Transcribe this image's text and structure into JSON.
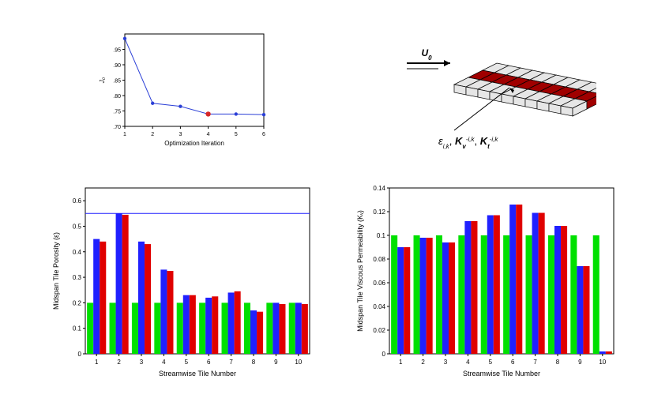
{
  "convergence_chart": {
    "type": "line",
    "x": [
      1,
      2,
      3,
      4,
      5,
      6
    ],
    "y": [
      0.985,
      0.775,
      0.765,
      0.74,
      0.74,
      0.738
    ],
    "highlight_index": 3,
    "line_color": "#2b3fd6",
    "marker_color": "#2b3fd6",
    "highlight_color": "#d62728",
    "xlabel": "Optimization Iteration",
    "ylabel": "J₀",
    "xlim": [
      1,
      6
    ],
    "ylim": [
      0.7,
      1.0
    ],
    "yticks": [
      0.7,
      0.75,
      0.8,
      0.85,
      0.9,
      0.95
    ],
    "xticks": [
      1,
      2,
      3,
      4,
      5,
      6
    ],
    "label_fontsize": 8,
    "tick_fontsize": 7,
    "background_color": "#ffffff",
    "border_color": "#000000"
  },
  "schematic": {
    "u_label": "U₀",
    "params_label_html": "ε_{i,k},  K_v^{-i,k},  K_t^{-i,k}",
    "tile_fill": "#e6e6e6",
    "tile_stroke": "#000000",
    "mid_fill": "#a00000",
    "arrow_color": "#000000"
  },
  "porosity_chart": {
    "type": "grouped-bar",
    "xlabel": "Streamwise Tile Number",
    "ylabel": "Midspan Tile Porosity (ε)",
    "categories": [
      1,
      2,
      3,
      4,
      5,
      6,
      7,
      8,
      9,
      10
    ],
    "green": [
      0.2,
      0.2,
      0.2,
      0.2,
      0.2,
      0.2,
      0.2,
      0.2,
      0.2,
      0.2
    ],
    "blue": [
      0.45,
      0.55,
      0.44,
      0.33,
      0.23,
      0.22,
      0.24,
      0.17,
      0.2,
      0.2
    ],
    "red": [
      0.44,
      0.545,
      0.43,
      0.325,
      0.23,
      0.225,
      0.245,
      0.165,
      0.195,
      0.195
    ],
    "hline": 0.55,
    "ylim": [
      0,
      0.65
    ],
    "yticks": [
      0,
      0.1,
      0.2,
      0.3,
      0.4,
      0.5,
      0.6
    ],
    "colors": {
      "green": "#00e000",
      "blue": "#2020ff",
      "red": "#e00000",
      "hline": "#2020ff",
      "axis": "#000000"
    },
    "label_fontsize": 9,
    "tick_fontsize": 8
  },
  "permeability_chart": {
    "type": "grouped-bar",
    "xlabel": "Streamwise Tile Number",
    "ylabel": "Midspan Tile Viscous Permeability (Kᵥ)",
    "categories": [
      1,
      2,
      3,
      4,
      5,
      6,
      7,
      8,
      9,
      10
    ],
    "green": [
      0.1,
      0.1,
      0.1,
      0.1,
      0.1,
      0.1,
      0.1,
      0.1,
      0.1,
      0.1
    ],
    "blue": [
      0.09,
      0.098,
      0.094,
      0.112,
      0.117,
      0.126,
      0.119,
      0.108,
      0.074,
      0.002
    ],
    "red": [
      0.09,
      0.098,
      0.094,
      0.112,
      0.117,
      0.126,
      0.119,
      0.108,
      0.074,
      0.002
    ],
    "ylim": [
      0,
      0.14
    ],
    "yticks": [
      0,
      0.02,
      0.04,
      0.06,
      0.08,
      0.1,
      0.12,
      0.14
    ],
    "colors": {
      "green": "#00e000",
      "blue": "#2020ff",
      "red": "#e00000",
      "axis": "#000000"
    },
    "label_fontsize": 9,
    "tick_fontsize": 8
  }
}
